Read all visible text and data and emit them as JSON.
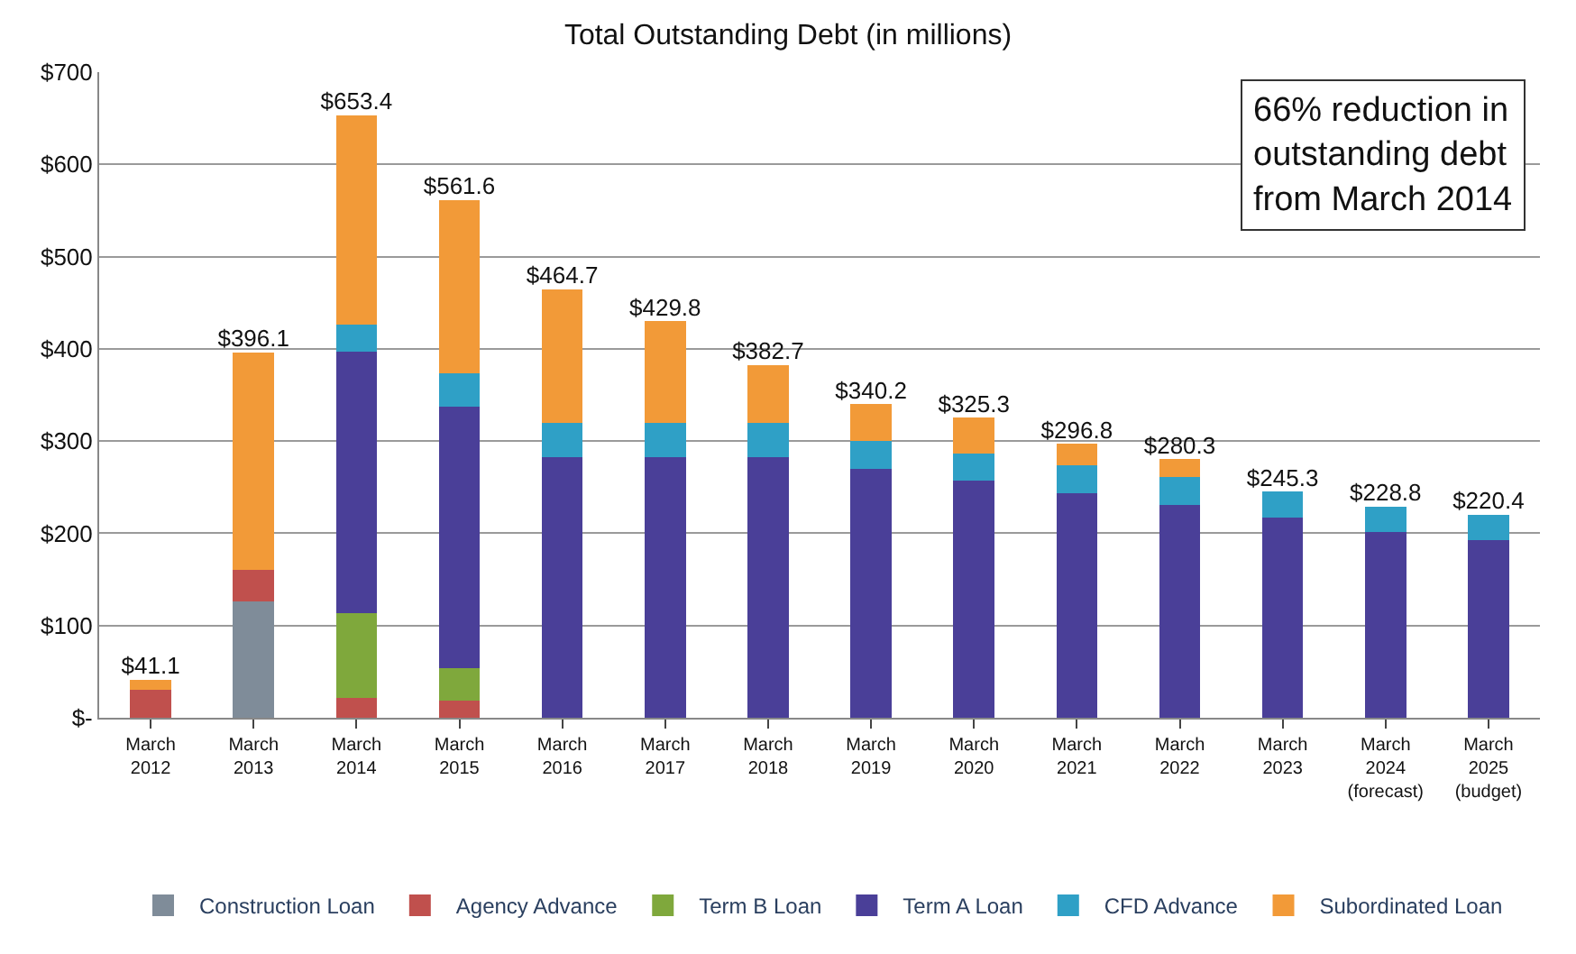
{
  "chart_data": {
    "type": "bar",
    "stacked": true,
    "title": "Total Outstanding Debt (in millions)",
    "categories": [
      "March\n2012",
      "March\n2013",
      "March\n2014",
      "March\n2015",
      "March\n2016",
      "March\n2017",
      "March\n2018",
      "March\n2019",
      "March\n2020",
      "March\n2021",
      "March\n2022",
      "March\n2023",
      "March\n2024\n(forecast)",
      "March\n2025\n(budget)"
    ],
    "series": [
      {
        "name": "Construction Loan",
        "color": "#7f8c99",
        "values": [
          null,
          126,
          null,
          null,
          null,
          null,
          null,
          null,
          null,
          null,
          null,
          null,
          null,
          null
        ]
      },
      {
        "name": "Agency Advance",
        "color": "#c0504d",
        "values": [
          30,
          34,
          22,
          19,
          null,
          null,
          null,
          null,
          null,
          null,
          null,
          null,
          null,
          null
        ]
      },
      {
        "name": "Term B Loan",
        "color": "#7fa83c",
        "values": [
          null,
          null,
          91,
          35,
          null,
          null,
          null,
          null,
          null,
          null,
          null,
          null,
          null,
          null
        ]
      },
      {
        "name": "Term A Loan",
        "color": "#4a3f98",
        "values": [
          null,
          null,
          284,
          283,
          283,
          283,
          283,
          270,
          257,
          243,
          231,
          217,
          201,
          193
        ]
      },
      {
        "name": "CFD Advance",
        "color": "#2fa0c6",
        "values": [
          null,
          null,
          29,
          36,
          37,
          37,
          37,
          30,
          29,
          31,
          30,
          28.3,
          27.8,
          27.4
        ]
      },
      {
        "name": "Subordinated Loan",
        "color": "#f29a38",
        "values": [
          11.1,
          236.1,
          227.4,
          188.6,
          144.7,
          109.8,
          62.7,
          40.2,
          39.3,
          22.8,
          19.3,
          null,
          null,
          null
        ]
      }
    ],
    "totals": [
      "$41.1",
      "$396.1",
      "$653.4",
      "$561.6",
      "$464.7",
      "$429.8",
      "$382.7",
      "$340.2",
      "$325.3",
      "$296.8",
      "$280.3",
      "$245.3",
      "$228.8",
      "$220.4"
    ],
    "ylim": [
      0,
      700
    ],
    "yticks": [
      {
        "value": 0,
        "label": "$-"
      },
      {
        "value": 100,
        "label": "$100"
      },
      {
        "value": 200,
        "label": "$200"
      },
      {
        "value": 300,
        "label": "$300"
      },
      {
        "value": 400,
        "label": "$400"
      },
      {
        "value": 500,
        "label": "$500"
      },
      {
        "value": 600,
        "label": "$600"
      },
      {
        "value": 700,
        "label": "$700"
      }
    ],
    "grid": "y",
    "legend": "bottom",
    "annotations": [
      "66% reduction in\noutstanding debt\nfrom March 2014"
    ]
  }
}
